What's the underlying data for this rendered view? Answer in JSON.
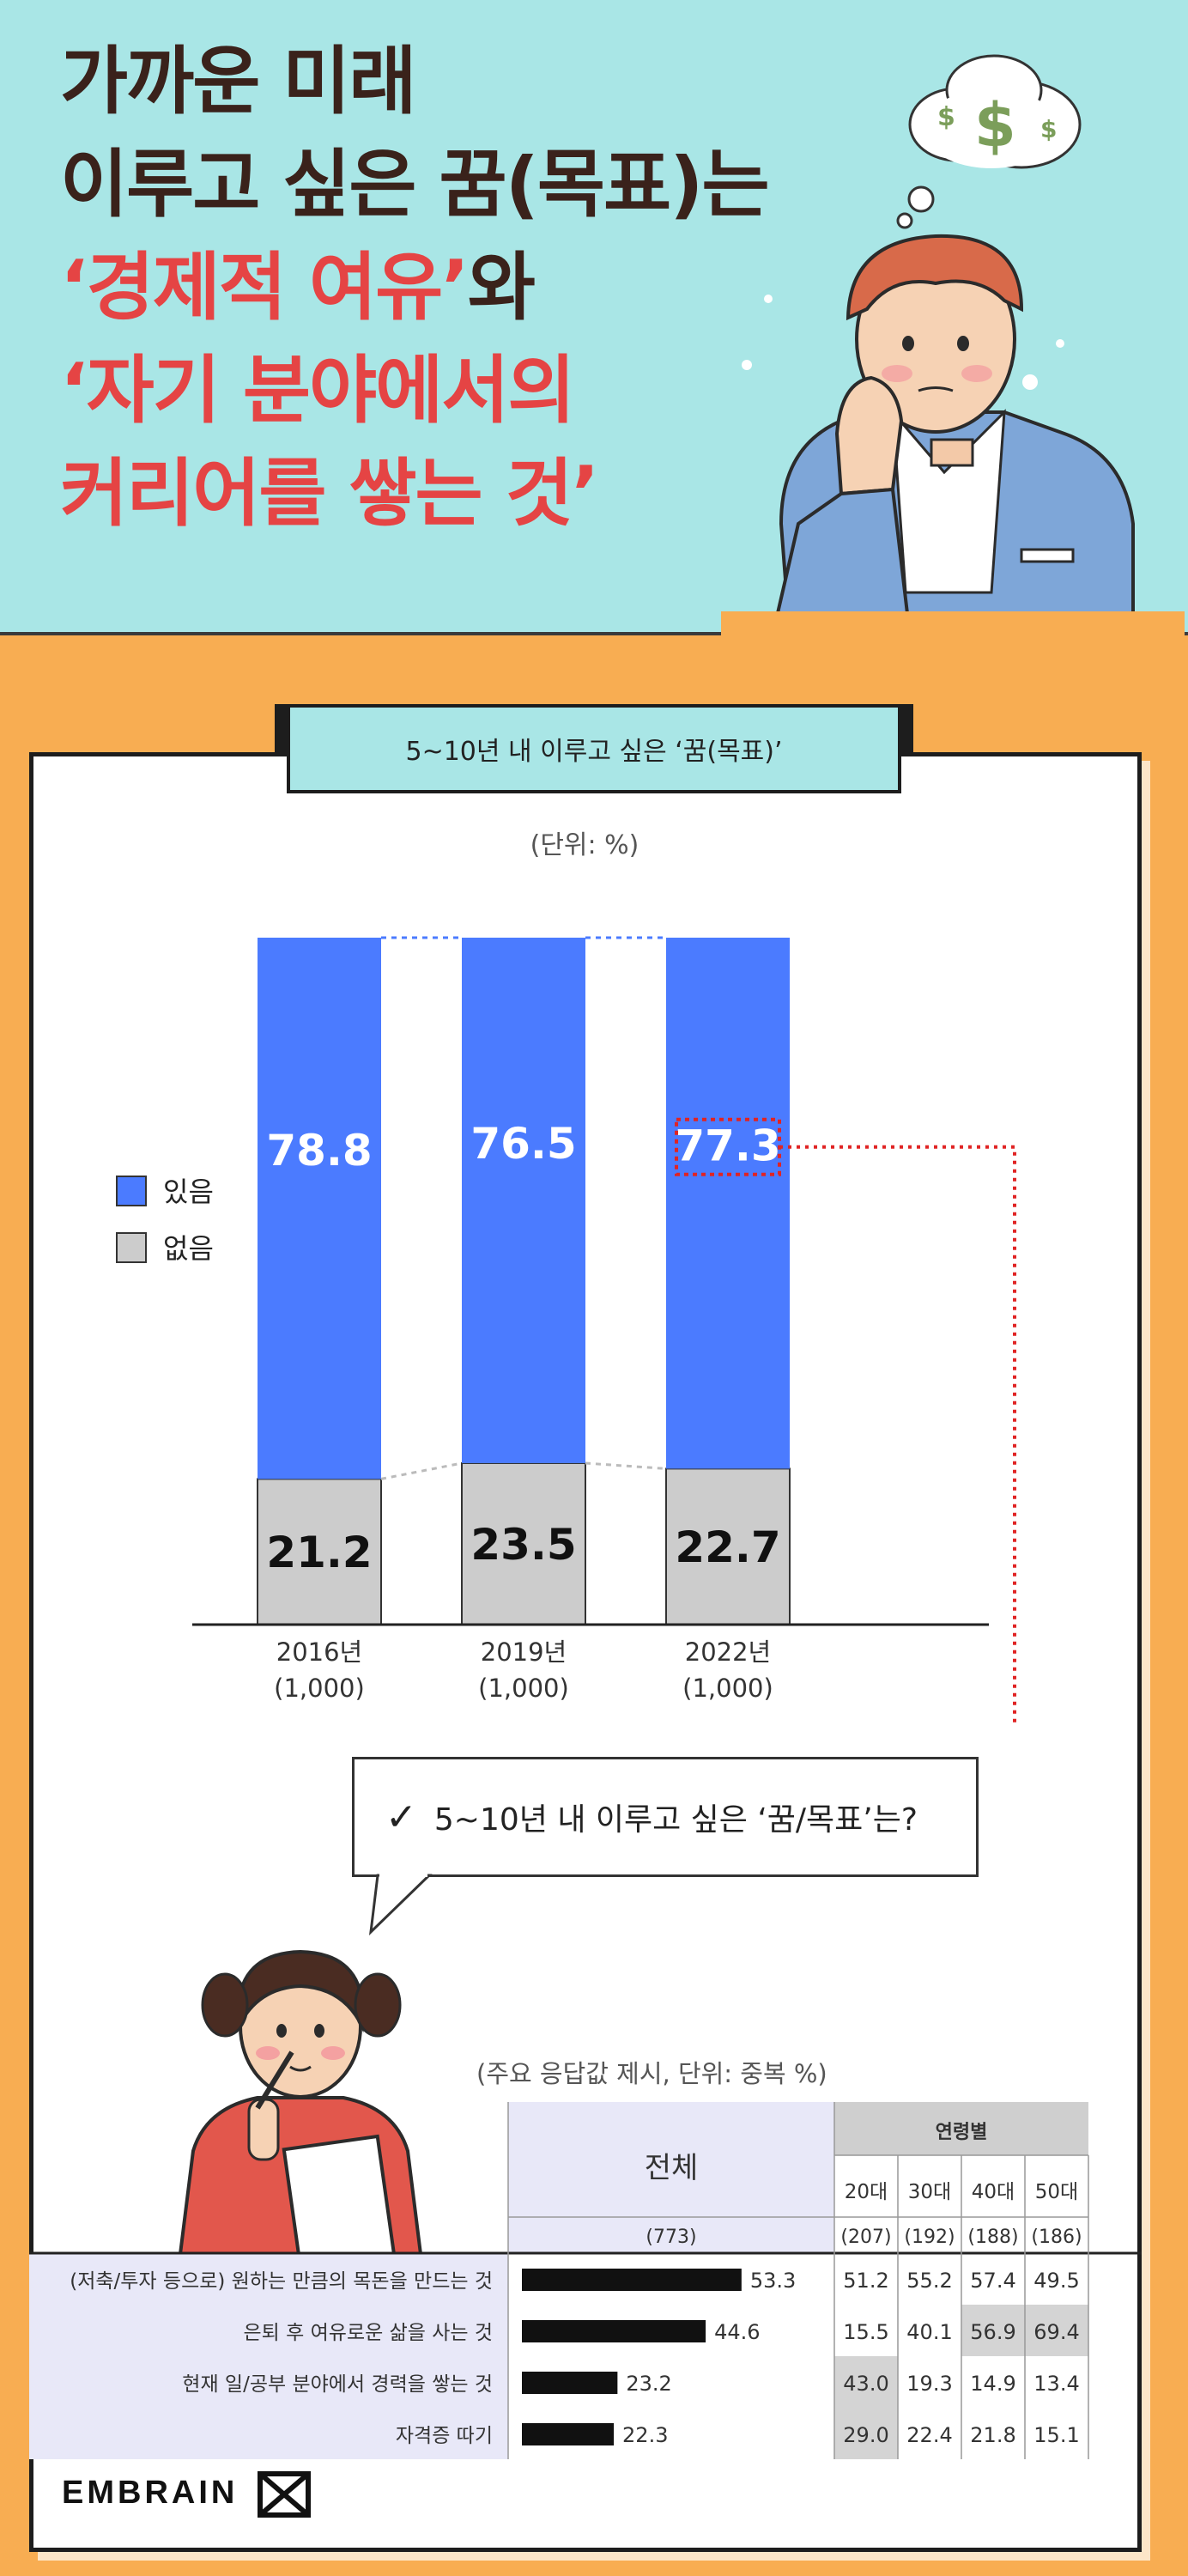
{
  "headline": {
    "line1": "가까운 미래",
    "line2": "이루고 싶은 꿈(목표)는",
    "line3a": "‘경제적 여유’",
    "line3b": "와",
    "line4": "‘자기 분야에서의",
    "line5": "커리어를 쌓는 것’"
  },
  "thought": {
    "symbols": [
      "$",
      "$",
      "$"
    ]
  },
  "section_title": "5~10년 내 이루고 싶은 ‘꿈(목표)’",
  "chart_data": [
    {
      "type": "bar",
      "subtitle": "(단위: %)",
      "categories": [
        "2016년",
        "2019년",
        "2022년"
      ],
      "category_bases": [
        "(1,000)",
        "(1,000)",
        "(1,000)"
      ],
      "stacked": true,
      "series": [
        {
          "name": "있음",
          "color": "#4b7bff",
          "values": [
            78.8,
            76.5,
            77.3
          ]
        },
        {
          "name": "없음",
          "color": "#cccccc",
          "values": [
            21.2,
            23.5,
            22.7
          ]
        }
      ],
      "ylim": [
        0,
        100
      ],
      "legend": "left",
      "highlight": "77.3"
    },
    {
      "type": "table",
      "question": "5~10년 내 이루고 싶은 ‘꿈/목표’는?",
      "note": "(주요 응답값 제시, 단위: 중복 %)",
      "total_header": "전체",
      "total_base": "(773)",
      "age_header": "연령별",
      "age_groups": [
        "20대",
        "30대",
        "40대",
        "50대"
      ],
      "age_bases": [
        "(207)",
        "(192)",
        "(188)",
        "(186)"
      ],
      "rows": [
        {
          "label": "(저축/투자 등으로) 원하는 만큼의 목돈을 만드는 것",
          "total": 53.3,
          "ages": [
            51.2,
            55.2,
            57.4,
            49.5
          ]
        },
        {
          "label": "은퇴 후 여유로운 삶을 사는 것",
          "total": 44.6,
          "ages": [
            15.5,
            40.1,
            56.9,
            69.4
          ]
        },
        {
          "label": "현재 일/공부 분야에서 경력을 쌓는 것",
          "total": 23.2,
          "ages": [
            43.0,
            19.3,
            14.9,
            13.4
          ]
        },
        {
          "label": "자격증 따기",
          "total": 22.3,
          "ages": [
            29.0,
            22.4,
            21.8,
            15.1
          ]
        }
      ],
      "highlighted_cells": [
        [
          1,
          2
        ],
        [
          1,
          3
        ],
        [
          2,
          0
        ],
        [
          3,
          0
        ]
      ]
    }
  ],
  "footer": {
    "logo": "EMBRAIN"
  }
}
